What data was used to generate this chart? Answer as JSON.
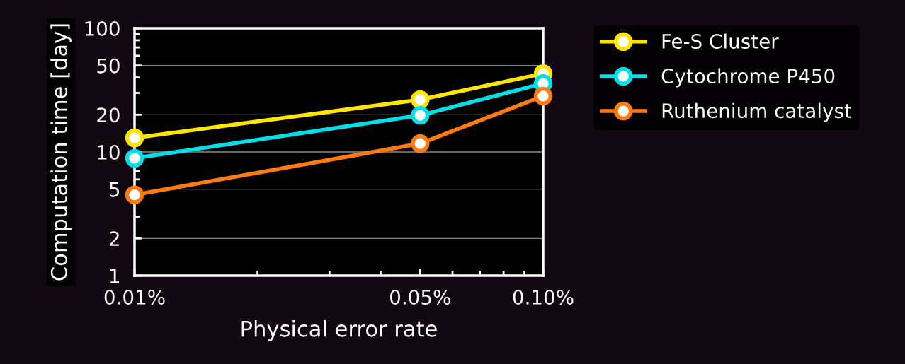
{
  "chart_data": {
    "type": "line",
    "xlabel": "Physical error rate",
    "ylabel": "Computation time [day]",
    "x": [
      0.01,
      0.05,
      0.1
    ],
    "series": [
      {
        "name": "Fe-S Cluster",
        "color": "#ffe600",
        "values": [
          13,
          26.5,
          43
        ]
      },
      {
        "name": "Cytochrome P450",
        "color": "#00e0e8",
        "values": [
          8.9,
          19.8,
          35.8
        ]
      },
      {
        "name": "Ruthenium catalyst",
        "color": "#ff7a10",
        "values": [
          4.5,
          11.7,
          28.3
        ]
      }
    ],
    "log": "xy",
    "xlim": [
      0.01,
      0.1
    ],
    "ylim": [
      1,
      100
    ],
    "xticks": [
      {
        "value": 0.01,
        "label": "0.01%"
      },
      {
        "value": 0.05,
        "label": "0.05%"
      },
      {
        "value": 0.1,
        "label": "0.10%"
      }
    ],
    "yticks": [
      1,
      2,
      5,
      10,
      20,
      50,
      100
    ],
    "grid": "y",
    "legend": "right",
    "marker": "circle",
    "line_style": "solid"
  }
}
